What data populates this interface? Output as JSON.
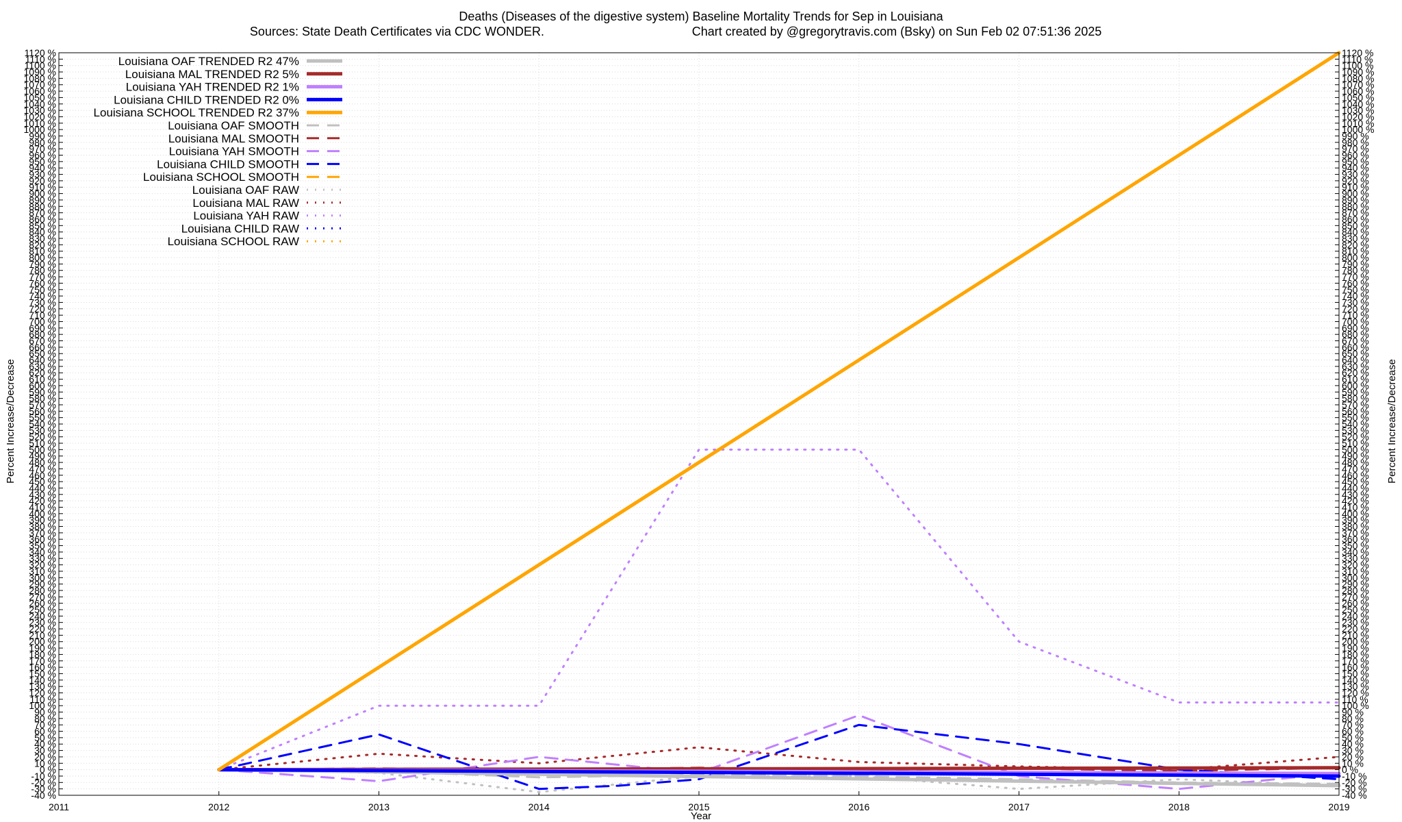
{
  "chart_data": {
    "type": "line",
    "title": "Deaths (Diseases of the digestive system)  Baseline Mortality Trends for Sep in Louisiana",
    "subtitle_left": "Sources: State Death Certificates via CDC WONDER.",
    "subtitle_right": "Chart created by @gregorytravis.com (Bsky) on Sun Feb 02 07:51:36 2025",
    "xlabel": "Year",
    "ylabel": "Percent Increase/Decrease",
    "ylabel_right": "Percent Increase/Decrease",
    "xlim": [
      2011,
      2019
    ],
    "ylim": [
      -40,
      1120
    ],
    "x_ticks": [
      2011,
      2012,
      2013,
      2014,
      2015,
      2016,
      2017,
      2018,
      2019
    ],
    "y_tick_step": 10,
    "y_tick_suffix": " %",
    "grid": true,
    "legend_position": "top-left",
    "colors": {
      "OAF": "#c0c0c0",
      "MAL": "#a52a2a",
      "YAH": "#bf80ff",
      "CHILD": "#0000ff",
      "SCHOOL": "#ffa500"
    },
    "series": [
      {
        "name": "Louisiana OAF TRENDED R2  47%",
        "group": "OAF",
        "kind": "trend",
        "x": [
          2012,
          2019
        ],
        "y": [
          0,
          -25
        ]
      },
      {
        "name": "Louisiana MAL TRENDED R2   5%",
        "group": "MAL",
        "kind": "trend",
        "x": [
          2012,
          2019
        ],
        "y": [
          0,
          3
        ]
      },
      {
        "name": "Louisiana YAH TRENDED R2   1%",
        "group": "YAH",
        "kind": "trend",
        "x": [
          2012,
          2019
        ],
        "y": [
          0,
          -6
        ]
      },
      {
        "name": "Louisiana CHILD TRENDED R2   0%",
        "group": "CHILD",
        "kind": "trend",
        "x": [
          2012,
          2019
        ],
        "y": [
          0,
          -10
        ]
      },
      {
        "name": "Louisiana SCHOOL TRENDED R2  37%",
        "group": "SCHOOL",
        "kind": "trend",
        "x": [
          2012,
          2019
        ],
        "y": [
          0,
          1120
        ]
      },
      {
        "name": "Louisiana OAF SMOOTH",
        "group": "OAF",
        "kind": "smooth",
        "x": [
          2012,
          2013,
          2014,
          2015,
          2016,
          2017,
          2018,
          2019
        ],
        "y": [
          0,
          -2,
          -12,
          -8,
          -10,
          -15,
          -20,
          -22
        ]
      },
      {
        "name": "Louisiana MAL SMOOTH",
        "group": "MAL",
        "kind": "smooth",
        "x": [
          2012,
          2013,
          2014,
          2015,
          2016,
          2017,
          2018,
          2019
        ],
        "y": [
          0,
          2,
          0,
          3,
          0,
          2,
          -2,
          3
        ]
      },
      {
        "name": "Louisiana YAH SMOOTH",
        "group": "YAH",
        "kind": "smooth",
        "x": [
          2012,
          2013,
          2014,
          2015,
          2016,
          2017,
          2018,
          2019
        ],
        "y": [
          0,
          -18,
          20,
          -5,
          85,
          -10,
          -30,
          -5
        ]
      },
      {
        "name": "Louisiana CHILD SMOOTH",
        "group": "CHILD",
        "kind": "smooth",
        "x": [
          2012,
          2013,
          2014,
          2014.5,
          2015,
          2016,
          2017,
          2018,
          2019
        ],
        "y": [
          0,
          55,
          -30,
          -25,
          -15,
          70,
          40,
          0,
          -15
        ]
      },
      {
        "name": "Louisiana SCHOOL SMOOTH",
        "group": "SCHOOL",
        "kind": "smooth",
        "x": [],
        "y": []
      },
      {
        "name": "Louisiana OAF RAW",
        "group": "OAF",
        "kind": "raw",
        "x": [
          2012,
          2013,
          2014,
          2015,
          2016,
          2017,
          2018,
          2019
        ],
        "y": [
          0,
          -5,
          -35,
          -10,
          -10,
          -30,
          -15,
          -25
        ]
      },
      {
        "name": "Louisiana MAL RAW",
        "group": "MAL",
        "kind": "raw",
        "x": [
          2012,
          2013,
          2014,
          2015,
          2016,
          2017,
          2018,
          2019
        ],
        "y": [
          0,
          25,
          10,
          35,
          12,
          5,
          0,
          20
        ]
      },
      {
        "name": "Louisiana YAH RAW",
        "group": "YAH",
        "kind": "raw",
        "x": [
          2012,
          2013,
          2014,
          2015,
          2016,
          2017,
          2018,
          2019
        ],
        "y": [
          0,
          100,
          100,
          500,
          500,
          200,
          105,
          105
        ]
      },
      {
        "name": "Louisiana CHILD RAW",
        "group": "CHILD",
        "kind": "raw",
        "x": [],
        "y": []
      },
      {
        "name": "Louisiana SCHOOL RAW",
        "group": "SCHOOL",
        "kind": "raw",
        "x": [],
        "y": []
      }
    ]
  }
}
